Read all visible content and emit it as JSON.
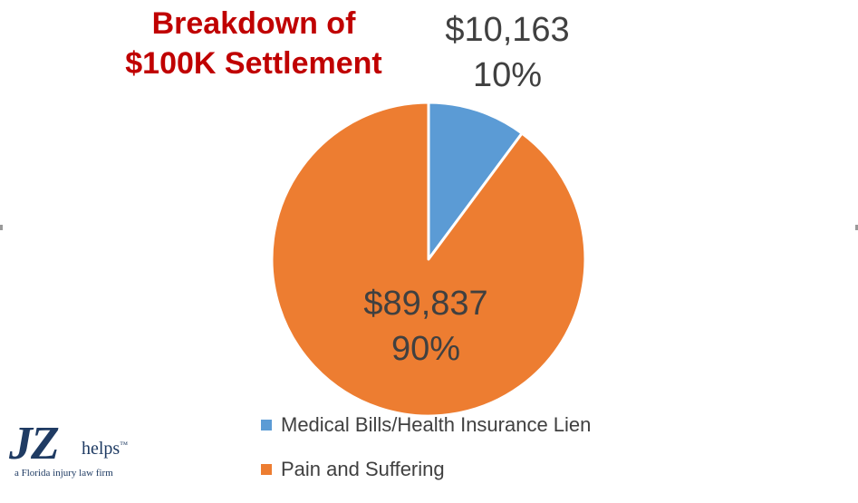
{
  "chart_data": {
    "type": "pie",
    "title": [
      "Breakdown of",
      "$100K Settlement"
    ],
    "slices": [
      {
        "name": "Medical Bills/Health Insurance Lien",
        "value": 10163,
        "amount_label": "$10,163",
        "percent_label": "10%",
        "color": "#5b9bd5"
      },
      {
        "name": "Pain and Suffering",
        "value": 89837,
        "amount_label": "$89,837",
        "percent_label": "90%",
        "color": "#ed7d31"
      }
    ],
    "start_angle_deg": 0,
    "direction": "clockwise",
    "legend_position": "bottom"
  },
  "logo": {
    "main": "JZ",
    "suffix": "helps",
    "trademark": "™",
    "tagline": "a Florida injury law firm"
  }
}
